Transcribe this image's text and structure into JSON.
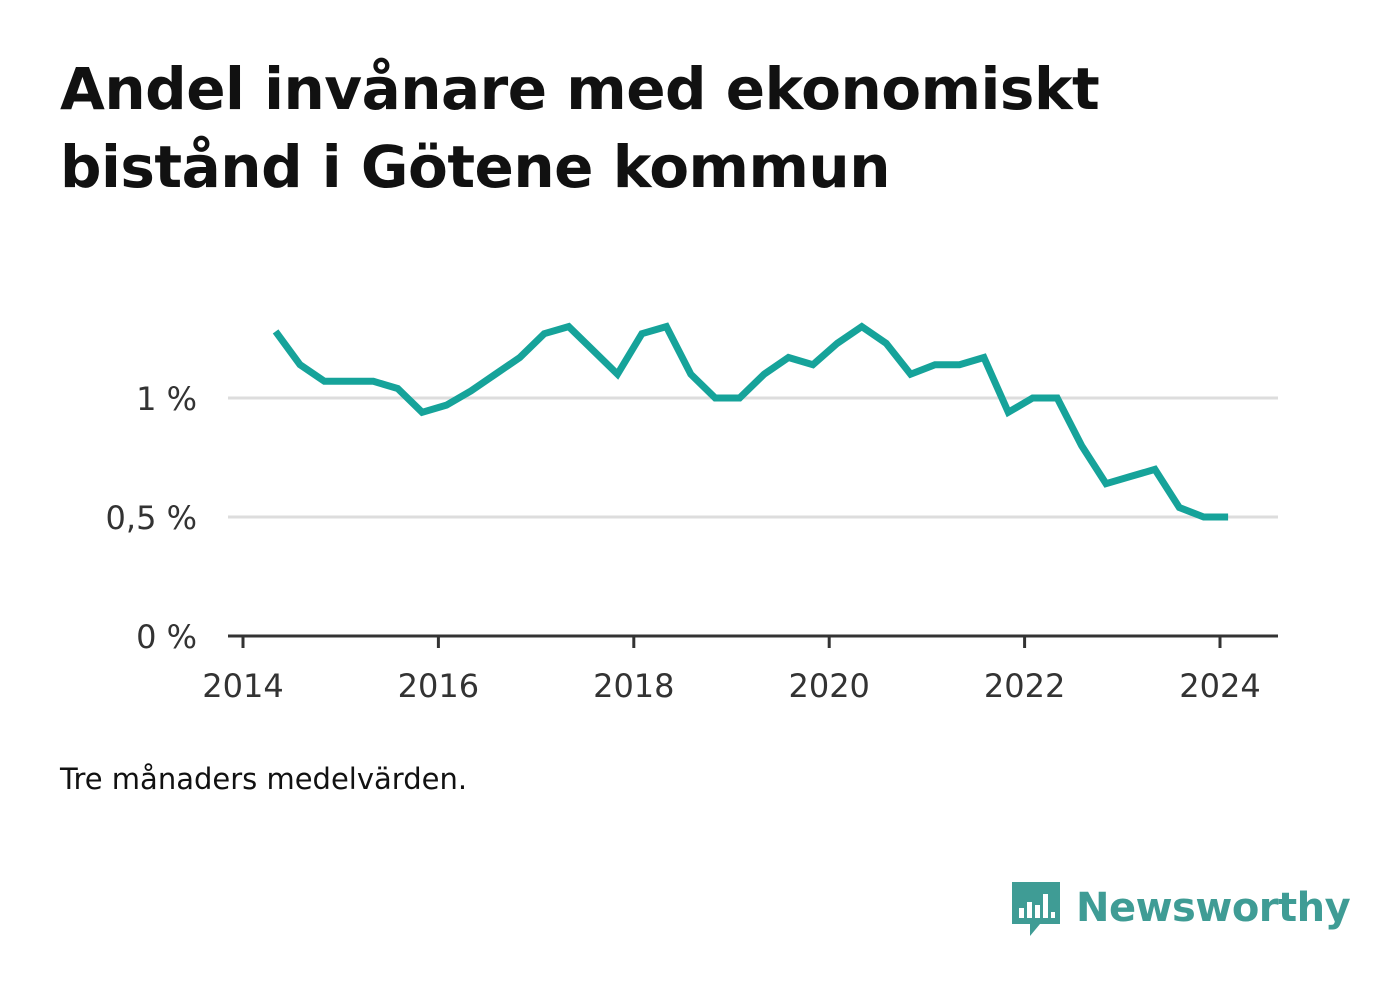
{
  "title": "Andel invånare med ekonomiskt bistånd i Götene kommun",
  "note": "Tre månaders medelvärden.",
  "brand": {
    "name": "Newsworthy",
    "color": "#3f9c95",
    "icon": "newsworthy-logo-icon"
  },
  "colors": {
    "line": "#16a39a",
    "grid": "#dddddd",
    "axis": "#333333"
  },
  "chart_data": {
    "type": "line",
    "title": "Andel invånare med ekonomiskt bistånd i Götene kommun",
    "xlabel": "",
    "ylabel": "",
    "xlim": [
      "2014-01-01",
      "2024-07-01"
    ],
    "ylim": [
      0,
      1.4
    ],
    "x_ticks": [
      "2014",
      "2016",
      "2018",
      "2020",
      "2022",
      "2024"
    ],
    "y_ticks": [
      {
        "value": 0,
        "label": "0 %"
      },
      {
        "value": 0.5,
        "label": "0,5 %"
      },
      {
        "value": 1,
        "label": "1 %"
      }
    ],
    "grid": true,
    "legend": "none",
    "series": [
      {
        "x": [
          "2014-05-01",
          "2014-08-01",
          "2014-11-01",
          "2015-02-01",
          "2015-05-01",
          "2015-08-01",
          "2015-11-01",
          "2016-02-01",
          "2016-05-01",
          "2016-08-01",
          "2016-11-01",
          "2017-02-01",
          "2017-05-01",
          "2017-08-01",
          "2017-11-01",
          "2018-02-01",
          "2018-05-01",
          "2018-08-01",
          "2018-11-01",
          "2019-02-01",
          "2019-05-01",
          "2019-08-01",
          "2019-11-01",
          "2020-02-01",
          "2020-05-01",
          "2020-08-01",
          "2020-11-01",
          "2021-02-01",
          "2021-05-01",
          "2021-08-01",
          "2021-11-01",
          "2022-02-01",
          "2022-05-01",
          "2022-08-01",
          "2022-11-01",
          "2023-02-01",
          "2023-05-01",
          "2023-08-01",
          "2023-11-01",
          "2024-02-01"
        ],
        "values": [
          1.28,
          1.14,
          1.07,
          1.07,
          1.07,
          1.04,
          0.94,
          0.97,
          1.03,
          1.1,
          1.17,
          1.27,
          1.3,
          1.2,
          1.1,
          1.27,
          1.3,
          1.1,
          1.0,
          1.0,
          1.1,
          1.17,
          1.14,
          1.23,
          1.3,
          1.23,
          1.1,
          1.14,
          1.14,
          1.17,
          0.94,
          1.0,
          1.0,
          0.8,
          0.64,
          0.67,
          0.7,
          0.54,
          0.5,
          0.5
        ]
      }
    ]
  }
}
